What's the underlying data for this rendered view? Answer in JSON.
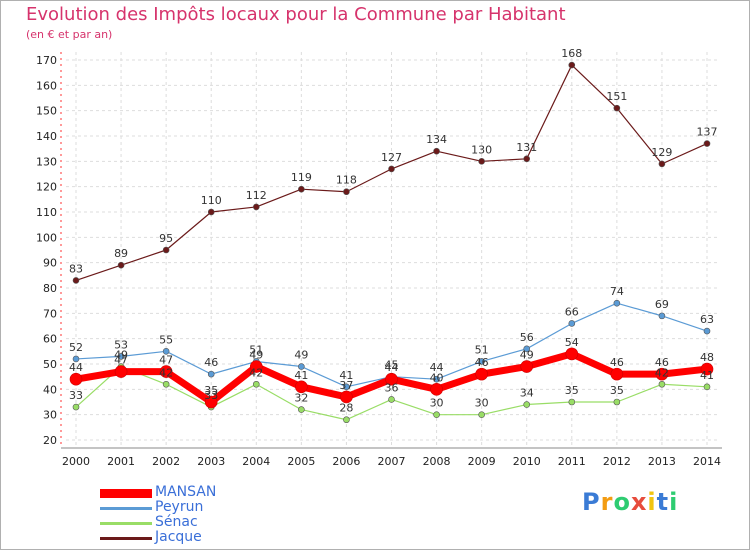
{
  "chart_data": {
    "type": "line",
    "title": "Evolution des Impôts locaux pour la Commune par Habitant",
    "subtitle": "(en € et par an)",
    "x": [
      "2000",
      "2001",
      "2002",
      "2003",
      "2004",
      "2005",
      "2006",
      "2007",
      "2008",
      "2009",
      "2010",
      "2011",
      "2012",
      "2013",
      "2014"
    ],
    "ylim": [
      20,
      170
    ],
    "yticks": [
      20,
      30,
      40,
      50,
      60,
      70,
      80,
      90,
      100,
      110,
      120,
      130,
      140,
      150,
      160,
      170
    ],
    "grid": true,
    "legend_position": "bottom-left",
    "series": [
      {
        "name": "MANSAN",
        "color": "#ff0000",
        "values": [
          44,
          47,
          47,
          35,
          49,
          41,
          37,
          44,
          40,
          46,
          49,
          54,
          46,
          46,
          48
        ],
        "labels": [
          "44",
          "47",
          "47",
          "35",
          "49",
          "41",
          "37",
          "44",
          "40",
          "46",
          "49",
          "54",
          "46",
          "46",
          "48"
        ]
      },
      {
        "name": "Peyrun",
        "color": "#5b9bd5",
        "values": [
          52,
          53,
          55,
          46,
          51,
          49,
          41,
          45,
          44,
          51,
          56,
          66,
          74,
          69,
          63
        ],
        "labels": [
          "52",
          "53",
          "55",
          "46",
          "51",
          "49",
          "41",
          "45",
          "44",
          "51",
          "56",
          "66",
          "74",
          "69",
          "63"
        ]
      },
      {
        "name": "Sénac",
        "color": "#99dd66",
        "values": [
          33,
          49,
          42,
          33,
          42,
          32,
          28,
          36,
          30,
          30,
          34,
          35,
          35,
          42,
          41
        ],
        "labels": [
          "33",
          "49",
          "42",
          "33",
          "42",
          "32",
          "28",
          "36",
          "30",
          "30",
          "34",
          "35",
          "35",
          "42",
          "41"
        ]
      },
      {
        "name": "Jacque",
        "color": "#6b1a1a",
        "values": [
          83,
          89,
          95,
          110,
          112,
          119,
          118,
          127,
          134,
          130,
          131,
          168,
          151,
          129,
          137
        ],
        "labels": [
          "83",
          "89",
          "95",
          "110",
          "112",
          "119",
          "118",
          "127",
          "134",
          "130",
          "131",
          "168",
          "151",
          "129",
          "137"
        ]
      }
    ]
  },
  "logo": {
    "letters": [
      "P",
      "r",
      "o",
      "x",
      "i",
      "t",
      "i"
    ],
    "colors": [
      "#3a7bd5",
      "#f39c12",
      "#2ecc71",
      "#e74c3c",
      "#f1c40f",
      "#3a7bd5",
      "#2ecc71"
    ]
  }
}
